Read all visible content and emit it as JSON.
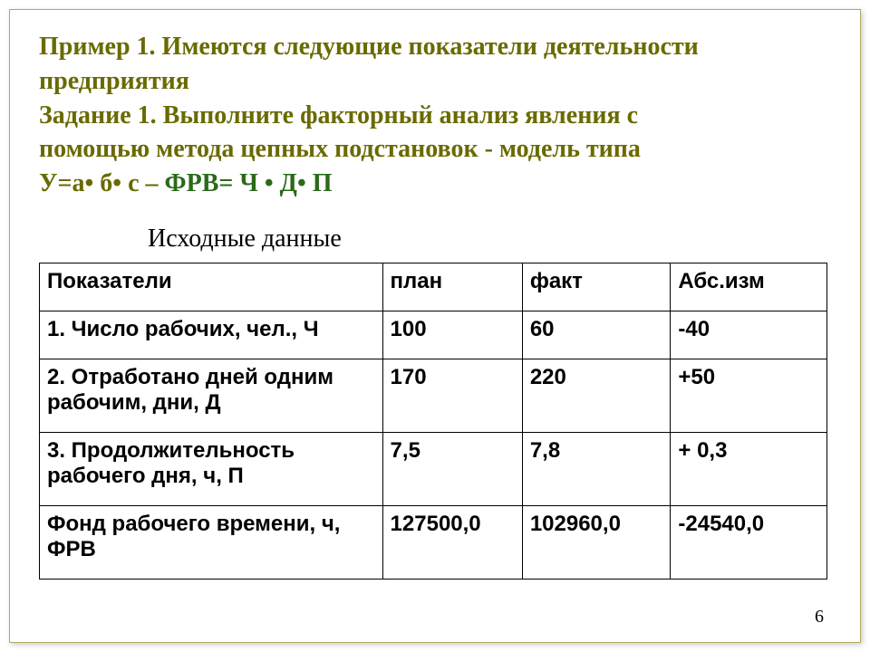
{
  "heading": {
    "line1": "Пример 1. Имеются следующие   показатели деятельности",
    "line2": "предприятия",
    "line3": "Задание 1. Выполните факторный анализ явления с",
    "line4": "помощью метода цепных подстановок - модель типа",
    "line5_prefix": "У=а• б• с    –        ",
    "line5_green": "ФРВ= Ч • Д•  П"
  },
  "subheading": "Исходные данные",
  "table": {
    "columns": [
      "Показатели",
      "план",
      "факт",
      "Абс.изм"
    ],
    "rows": [
      [
        "1. Число рабочих, чел., Ч",
        "100",
        "60",
        "-40"
      ],
      [
        "2. Отработано дней одним рабочим, дни, Д",
        "170",
        "220",
        "+50"
      ],
      [
        "3.  Продолжительность рабочего дня, ч, П",
        "7,5",
        "7,8",
        "+ 0,3"
      ],
      [
        "Фонд рабочего времени, ч, ФРВ",
        "127500,0",
        "102960,0",
        "-24540,0"
      ]
    ]
  },
  "page_number": "6",
  "colors": {
    "border": "#b8a85a",
    "heading_olive": "#6a6a00",
    "heading_green": "#2a6a1a",
    "table_border": "#000000",
    "background": "#ffffff"
  }
}
